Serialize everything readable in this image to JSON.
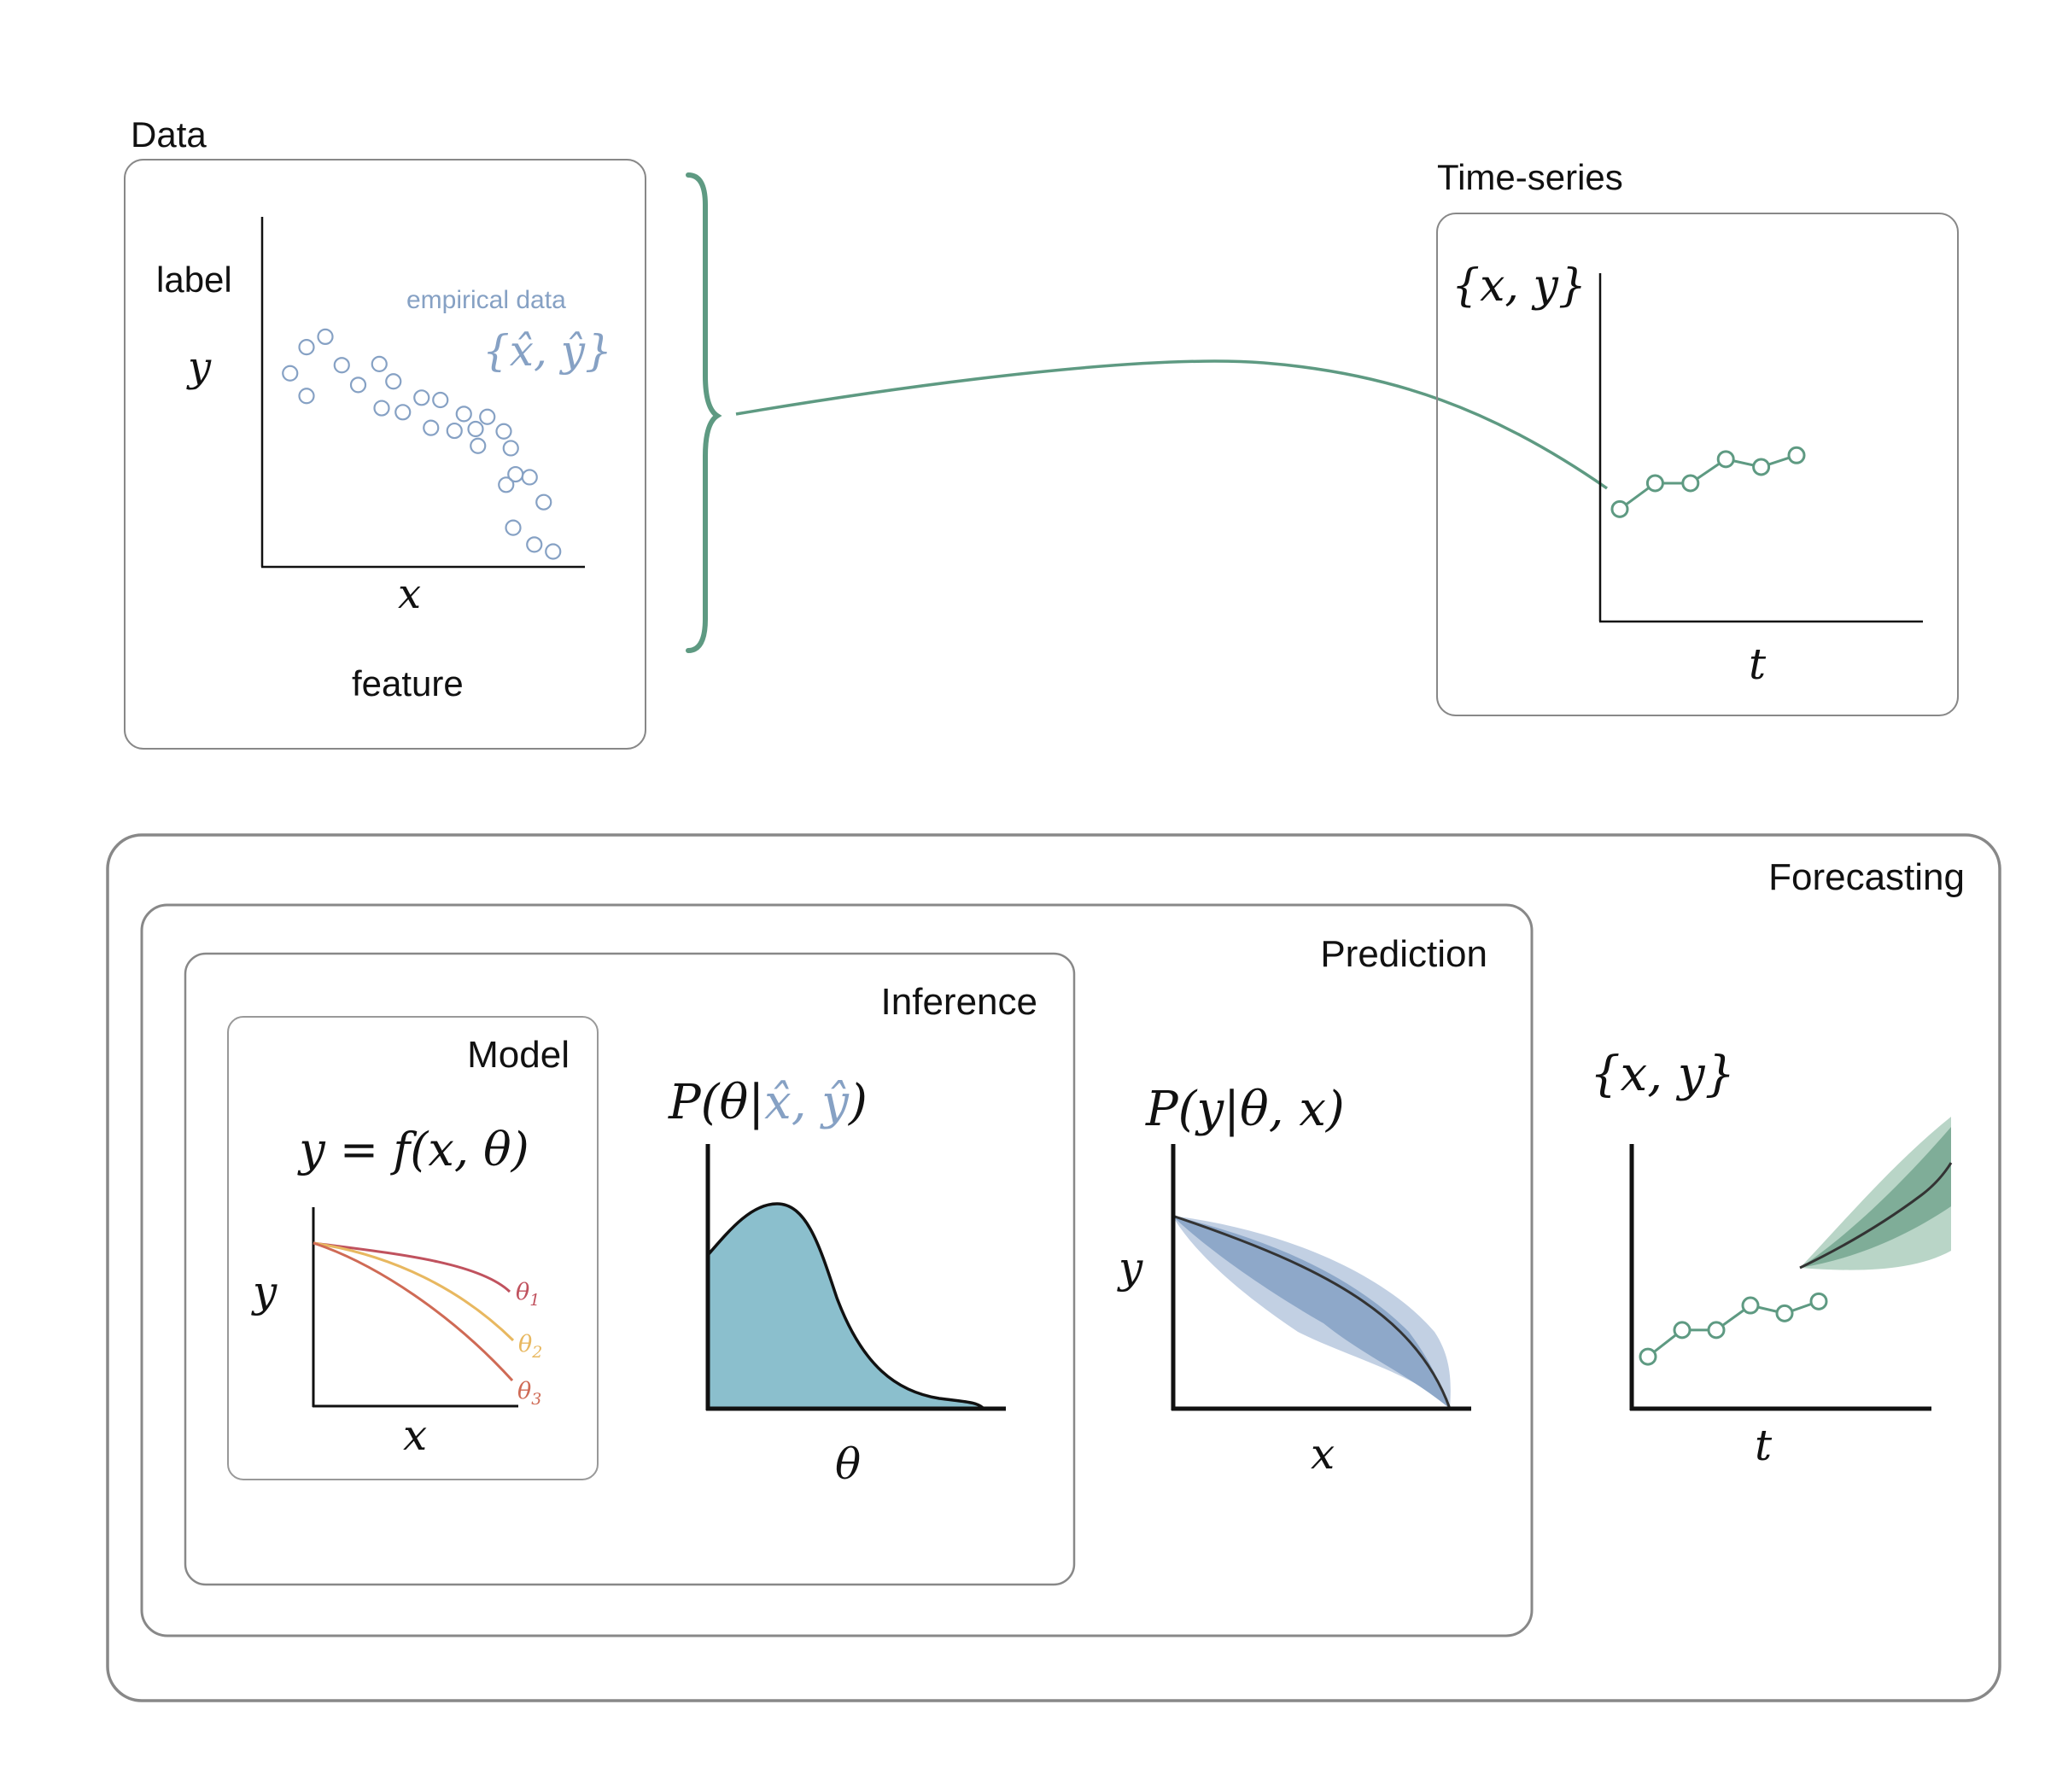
{
  "colors": {
    "green": "#5e9a82",
    "blue_points": "#86a1c4",
    "density_fill": "#8bbfcd",
    "curve_1": "#c0525e",
    "curve_2": "#e8b860",
    "curve_3": "#cf6a55",
    "band_outer": "#c2d0e3",
    "band_inner": "#8ea8c9",
    "forecast_outer": "#b9d5c7",
    "forecast_inner": "#7fad98"
  },
  "data_panel": {
    "title": "Data",
    "y_name": "label",
    "y_symbol": "y",
    "x_symbol": "x",
    "x_name": "feature",
    "annotation": "empirical data",
    "annotation_math": "{x̂, ŷ}",
    "points": [
      [
        0.5,
        30.7
      ],
      [
        1.2,
        35.2
      ],
      [
        1.2,
        26.8
      ],
      [
        2.0,
        37.0
      ],
      [
        2.7,
        32.1
      ],
      [
        3.4,
        28.7
      ],
      [
        4.3,
        32.3
      ],
      [
        4.4,
        24.7
      ],
      [
        4.9,
        29.3
      ],
      [
        5.3,
        24.0
      ],
      [
        6.1,
        26.5
      ],
      [
        6.5,
        21.3
      ],
      [
        6.9,
        26.1
      ],
      [
        7.5,
        20.8
      ],
      [
        7.9,
        23.7
      ],
      [
        8.4,
        21.1
      ],
      [
        8.5,
        18.2
      ],
      [
        8.9,
        23.2
      ],
      [
        9.6,
        20.7
      ],
      [
        9.7,
        11.5
      ],
      [
        9.9,
        17.8
      ],
      [
        10.0,
        4.1
      ],
      [
        10.1,
        13.3
      ],
      [
        10.7,
        12.8
      ],
      [
        10.9,
        1.2
      ],
      [
        11.3,
        8.5
      ],
      [
        11.7,
        0.0
      ]
    ]
  },
  "timeseries_panel": {
    "title": "Time-series",
    "y_symbol": "{x, y}",
    "x_symbol": "t",
    "points": [
      [
        1,
        1.4
      ],
      [
        2,
        5.4
      ],
      [
        3,
        5.4
      ],
      [
        4,
        9.1
      ],
      [
        5,
        7.9
      ],
      [
        6,
        9.7
      ]
    ]
  },
  "forecasting_panel": {
    "title": "Forecasting",
    "y_symbol": "{x, y}",
    "x_symbol": "t",
    "observed": [
      [
        1,
        1.4
      ],
      [
        2,
        5.4
      ],
      [
        3,
        5.4
      ],
      [
        4,
        9.1
      ],
      [
        5,
        7.9
      ],
      [
        6,
        9.7
      ]
    ]
  },
  "prediction_panel": {
    "title": "Prediction",
    "formula": "P(y|θ, x)",
    "y_symbol": "y",
    "x_symbol": "x"
  },
  "inference_panel": {
    "title": "Inference",
    "formula_prefix": "P(θ|",
    "formula_data": "x̂, ŷ",
    "formula_suffix": ")",
    "x_symbol": "θ"
  },
  "model_panel": {
    "title": "Model",
    "formula": "y = f(x, θ)",
    "y_symbol": "y",
    "x_symbol": "x",
    "curves": [
      {
        "label": "θ",
        "sub": "1"
      },
      {
        "label": "θ",
        "sub": "2"
      },
      {
        "label": "θ",
        "sub": "3"
      }
    ]
  }
}
